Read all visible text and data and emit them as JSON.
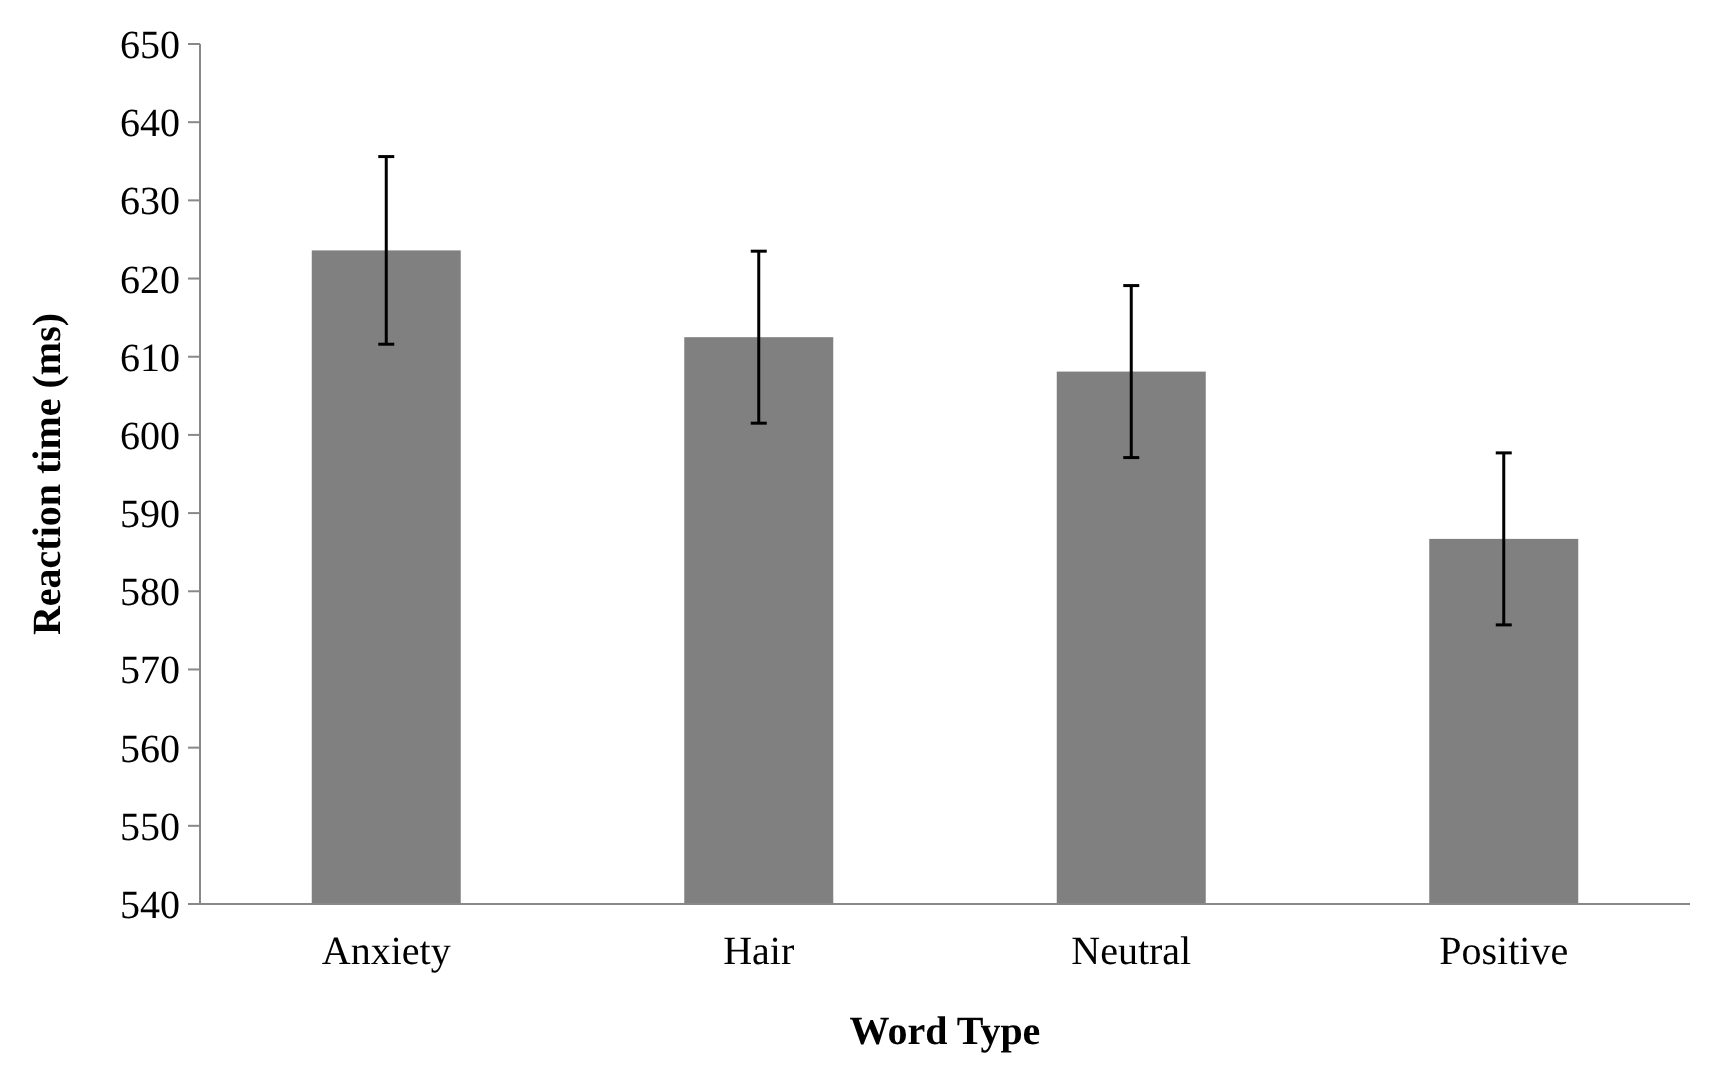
{
  "chart_data": {
    "type": "bar",
    "xlabel": "Word Type",
    "ylabel": "Reaction time (ms)",
    "categories": [
      "Anxiety",
      "Hair",
      "Neutral",
      "Positive"
    ],
    "values": [
      623.6,
      612.5,
      608.1,
      586.7
    ],
    "errors": [
      12,
      11,
      11,
      11
    ],
    "color": "#808080",
    "ylim": [
      540,
      650
    ],
    "yticks": [
      540,
      550,
      560,
      570,
      580,
      590,
      600,
      610,
      620,
      630,
      640,
      650
    ],
    "grid": false
  }
}
